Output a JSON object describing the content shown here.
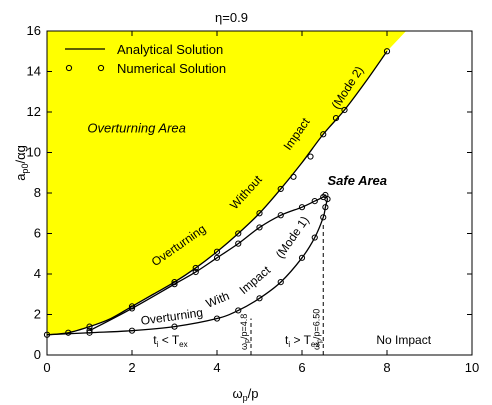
{
  "chart_data": {
    "type": "line",
    "title": "η=0.9",
    "xlabel": "ω",
    "xlabel_sub": "p",
    "xlabel_tail": "/p",
    "ylabel": "a",
    "ylabel_sub": "p0",
    "ylabel_tail": "/αg",
    "xlim": [
      0,
      10
    ],
    "ylim": [
      0,
      16
    ],
    "xticks": [
      0,
      2,
      4,
      6,
      8,
      10
    ],
    "yticks": [
      0,
      2,
      4,
      6,
      8,
      10,
      12,
      14,
      16
    ],
    "grid": false,
    "legend": {
      "placement": "top-left",
      "entries": [
        "Analytical Solution",
        "Numerical Solution"
      ]
    },
    "colors": {
      "overturning_area": "#ffff00",
      "curve": "#000000",
      "background": "#ffffff"
    },
    "series": [
      {
        "name": "Analytical Solution",
        "style": "line",
        "segments": [
          {
            "x": [
              0,
              0.5,
              1,
              1.5,
              2,
              2.5,
              3,
              3.5,
              4,
              4.5,
              5,
              5.5,
              6,
              6.5,
              7,
              7.5,
              8
            ],
            "y": [
              1.0,
              1.1,
              1.4,
              1.8,
              2.4,
              3.0,
              3.6,
              4.3,
              5.1,
              6.0,
              7.0,
              8.2,
              9.5,
              10.9,
              12.1,
              13.5,
              15.0
            ]
          },
          {
            "x": [
              1,
              2,
              3,
              3.5,
              4,
              4.5,
              5,
              5.5,
              6,
              6.3,
              6.5,
              6.55,
              6.6
            ],
            "y": [
              1.2,
              2.3,
              3.5,
              4.1,
              4.8,
              5.5,
              6.3,
              6.9,
              7.3,
              7.6,
              7.8,
              7.9,
              7.7
            ]
          },
          {
            "x": [
              0,
              1,
              2,
              3,
              4,
              4.5,
              5,
              5.5,
              6,
              6.3,
              6.5,
              6.55,
              6.6
            ],
            "y": [
              1.0,
              1.1,
              1.2,
              1.4,
              1.8,
              2.2,
              2.8,
              3.6,
              4.8,
              5.8,
              6.8,
              7.3,
              7.7
            ]
          }
        ]
      },
      {
        "name": "Numerical Solution",
        "style": "markers",
        "x": [
          0,
          0.5,
          1,
          2,
          3,
          3.5,
          4,
          4.5,
          5,
          5.5,
          5.8,
          6.2,
          6.5,
          6.8,
          7,
          8,
          1,
          2,
          3,
          3.5,
          4,
          4.5,
          5,
          5.5,
          6,
          6.3,
          6.5,
          6.55,
          6.6,
          1,
          2,
          3,
          4,
          4.5,
          5,
          5.5,
          6,
          6.3,
          6.5,
          6.55
        ],
        "y": [
          1.0,
          1.1,
          1.4,
          2.4,
          3.6,
          4.3,
          5.1,
          6.0,
          7.0,
          8.2,
          8.8,
          9.8,
          10.9,
          11.7,
          12.1,
          15.0,
          1.2,
          2.3,
          3.5,
          4.1,
          4.8,
          5.5,
          6.3,
          6.9,
          7.3,
          7.6,
          7.8,
          7.9,
          7.7,
          1.1,
          1.2,
          1.4,
          1.8,
          2.2,
          2.8,
          3.6,
          4.8,
          5.8,
          6.8,
          7.3
        ]
      }
    ],
    "vlines": [
      {
        "x": 4.8,
        "y_top": 1.8,
        "label": "ω",
        "label_sub": "p",
        "label_tail": "/p=4.8"
      },
      {
        "x": 6.5,
        "y_top": 6.5,
        "label": "ω",
        "label_sub": "p",
        "label_tail": "/p=6.50"
      }
    ],
    "annotations": [
      {
        "key": "overturning_area",
        "text": "Overturning Area",
        "x": 0.95,
        "y": 11.0,
        "italic": true,
        "bold": false,
        "rotate": 0
      },
      {
        "key": "safe_area",
        "text": "Safe Area",
        "x": 6.6,
        "y": 8.4,
        "italic": true,
        "bold": true,
        "rotate": 0
      },
      {
        "key": "no_impact",
        "text": "No Impact",
        "x": 7.75,
        "y": 0.55,
        "italic": false,
        "bold": false,
        "rotate": 0
      },
      {
        "key": "ow_mode2_1",
        "text": "Overturning",
        "x": 3.15,
        "y": 5.25,
        "italic": false,
        "bold": false,
        "rotate": -35
      },
      {
        "key": "ow_mode2_2",
        "text": "Without",
        "x": 4.75,
        "y": 7.9,
        "italic": false,
        "bold": false,
        "rotate": -48
      },
      {
        "key": "ow_mode2_3",
        "text": "Impact",
        "x": 5.95,
        "y": 10.8,
        "italic": false,
        "bold": false,
        "rotate": -55
      },
      {
        "key": "ow_mode2_4",
        "text": "(Mode 2)",
        "x": 7.15,
        "y": 13.1,
        "italic": false,
        "bold": false,
        "rotate": -57
      },
      {
        "key": "wi_mode1_1",
        "text": "Overturning",
        "x": 2.95,
        "y": 1.7,
        "italic": false,
        "bold": false,
        "rotate": -8
      },
      {
        "key": "wi_mode1_2",
        "text": "With",
        "x": 4.05,
        "y": 2.55,
        "italic": false,
        "bold": false,
        "rotate": -22
      },
      {
        "key": "wi_mode1_3",
        "text": "Impact",
        "x": 4.95,
        "y": 3.55,
        "italic": false,
        "bold": false,
        "rotate": -40
      },
      {
        "key": "wi_mode1_4",
        "text": "(Mode 1)",
        "x": 5.85,
        "y": 5.7,
        "italic": false,
        "bold": false,
        "rotate": -55
      }
    ],
    "region_labels": [
      {
        "main": "t",
        "sub": "i",
        "tail": " < T",
        "tail_sub": "ex",
        "x": 2.5,
        "y": 0.55
      },
      {
        "main": "t",
        "sub": "i",
        "tail": " > T",
        "tail_sub": "ex",
        "x": 5.6,
        "y": 0.55
      }
    ]
  }
}
